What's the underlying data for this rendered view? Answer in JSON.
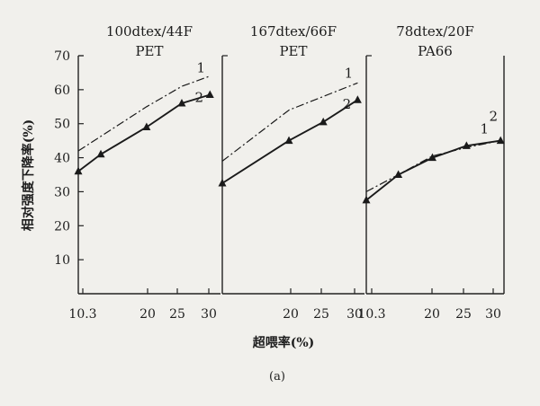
{
  "figure": {
    "ylabel": "相对强度下降率(%)",
    "xlabel": "超喂率(%)",
    "caption": "(a)"
  },
  "chart_data": [
    {
      "type": "line",
      "title": "100dtex/44F",
      "subtitle": "PET",
      "x_ticks": [
        "10.3",
        "20",
        "25",
        "30"
      ],
      "y_ticks": [
        10,
        20,
        30,
        40,
        50,
        60,
        70
      ],
      "xlim": [
        10.3,
        30.5
      ],
      "ylim": [
        0,
        70
      ],
      "series": [
        {
          "name": "1",
          "style": "dash-dot",
          "marker": "none",
          "x": [
            10.3,
            20,
            25,
            29
          ],
          "y": [
            42,
            55,
            61,
            64
          ]
        },
        {
          "name": "2",
          "style": "solid",
          "marker": "triangle",
          "x": [
            10.3,
            13.5,
            20,
            25,
            29
          ],
          "y": [
            36,
            41,
            49,
            56,
            58.5
          ]
        }
      ]
    },
    {
      "type": "line",
      "title": "167dtex/66F",
      "subtitle": "PET",
      "x_ticks": [
        "20",
        "25",
        "30"
      ],
      "y_ticks": [],
      "xlim": [
        10.3,
        31
      ],
      "ylim": [
        0,
        70
      ],
      "series": [
        {
          "name": "1",
          "style": "dash-dot",
          "marker": "none",
          "x": [
            10.3,
            20,
            25,
            30
          ],
          "y": [
            39,
            54,
            58,
            62
          ]
        },
        {
          "name": "2",
          "style": "solid",
          "marker": "triangle",
          "x": [
            10.3,
            20,
            25,
            30
          ],
          "y": [
            32.5,
            45,
            50.5,
            57
          ]
        }
      ]
    },
    {
      "type": "line",
      "title": "78dtex/20F",
      "subtitle": "PA66",
      "x_ticks": [
        "10.3",
        "20",
        "25",
        "30"
      ],
      "y_ticks": [],
      "xlim": [
        10.3,
        30.5
      ],
      "ylim": [
        0,
        70
      ],
      "series": [
        {
          "name": "1",
          "style": "dash-dot",
          "marker": "none",
          "x": [
            10.3,
            15,
            20,
            25,
            30
          ],
          "y": [
            30,
            35,
            40.5,
            43,
            45
          ]
        },
        {
          "name": "2",
          "style": "solid",
          "marker": "triangle",
          "x": [
            10.3,
            15,
            20,
            25,
            30
          ],
          "y": [
            27.5,
            35,
            40,
            43.5,
            45
          ]
        }
      ]
    }
  ]
}
